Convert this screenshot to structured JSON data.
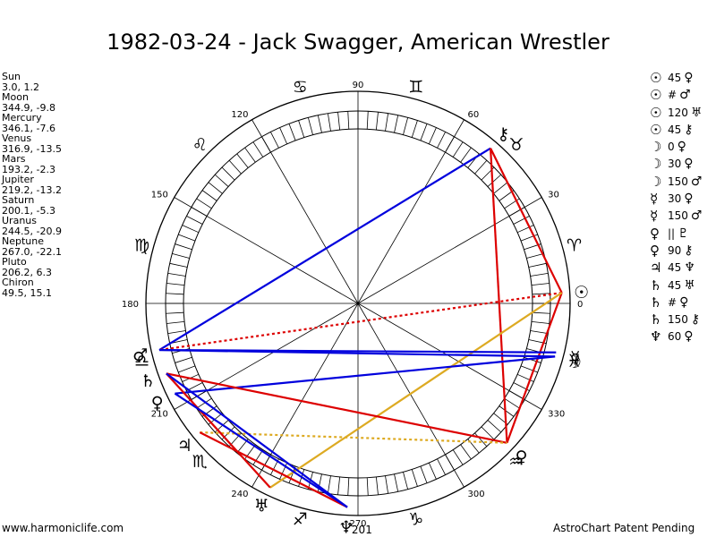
{
  "title": "1982-03-24 - Jack Swagger, American Wrestler",
  "planets": [
    {
      "name": "Sun",
      "pos": "3.0, 1.2"
    },
    {
      "name": "Moon",
      "pos": "344.9, -9.8"
    },
    {
      "name": "Mercury",
      "pos": "346.1, -7.6"
    },
    {
      "name": "Venus",
      "pos": "316.9, -13.5"
    },
    {
      "name": "Mars",
      "pos": "193.2, -2.3"
    },
    {
      "name": "Jupiter",
      "pos": "219.2, -13.2"
    },
    {
      "name": "Saturn",
      "pos": "200.1, -5.3"
    },
    {
      "name": "Uranus",
      "pos": "244.5, -20.9"
    },
    {
      "name": "Neptune",
      "pos": "267.0, -22.1"
    },
    {
      "name": "Pluto",
      "pos": "206.2, 6.3"
    },
    {
      "name": "Chiron",
      "pos": "49.5, 15.1"
    }
  ],
  "aspects": [
    {
      "p1": "☉",
      "aspect": "45",
      "p2": "♀"
    },
    {
      "p1": "☉",
      "aspect": "#",
      "p2": "♂"
    },
    {
      "p1": "☉",
      "aspect": "120",
      "p2": "♅"
    },
    {
      "p1": "☉",
      "aspect": "45",
      "p2": "⚷"
    },
    {
      "p1": "☽",
      "aspect": "0",
      "p2": "♀"
    },
    {
      "p1": "☽",
      "aspect": "30",
      "p2": "♀"
    },
    {
      "p1": "☽",
      "aspect": "150",
      "p2": "♂"
    },
    {
      "p1": "☿",
      "aspect": "30",
      "p2": "♀"
    },
    {
      "p1": "☿",
      "aspect": "150",
      "p2": "♂"
    },
    {
      "p1": "♀",
      "aspect": "||",
      "p2": "♇"
    },
    {
      "p1": "♀",
      "aspect": "90",
      "p2": "⚷"
    },
    {
      "p1": "♃",
      "aspect": "45",
      "p2": "♆"
    },
    {
      "p1": "♄",
      "aspect": "45",
      "p2": "♅"
    },
    {
      "p1": "♄",
      "aspect": "#",
      "p2": "♀"
    },
    {
      "p1": "♄",
      "aspect": "150",
      "p2": "⚷"
    },
    {
      "p1": "♆",
      "aspect": "60",
      "p2": "♀"
    }
  ],
  "degree_labels": [
    "0",
    "30",
    "60",
    "90",
    "120",
    "150",
    "180",
    "210",
    "240",
    "270",
    "300",
    "330"
  ],
  "ascendant_label": "201",
  "zodiac": [
    {
      "name": "aries",
      "glyph": "♈"
    },
    {
      "name": "taurus",
      "glyph": "♉"
    },
    {
      "name": "gemini",
      "glyph": "♊"
    },
    {
      "name": "cancer",
      "glyph": "♋"
    },
    {
      "name": "leo",
      "glyph": "♌"
    },
    {
      "name": "virgo",
      "glyph": "♍"
    },
    {
      "name": "libra",
      "glyph": "♎"
    },
    {
      "name": "scorpio",
      "glyph": "♏"
    },
    {
      "name": "sagittarius",
      "glyph": "♐"
    },
    {
      "name": "capricorn",
      "glyph": "♑"
    },
    {
      "name": "aquarius",
      "glyph": "♒"
    },
    {
      "name": "pisces",
      "glyph": "♓"
    }
  ],
  "chart_planets": [
    {
      "name": "sun",
      "glyph": "☉",
      "lon": 3.0
    },
    {
      "name": "moon",
      "glyph": "☽",
      "lon": 344.9
    },
    {
      "name": "mercury",
      "glyph": "☿",
      "lon": 346.1
    },
    {
      "name": "venus",
      "glyph": "♀",
      "lon": 316.9
    },
    {
      "name": "mars",
      "glyph": "♂",
      "lon": 193.2
    },
    {
      "name": "jupiter",
      "glyph": "♃",
      "lon": 219.2
    },
    {
      "name": "saturn",
      "glyph": "♄",
      "lon": 200.1
    },
    {
      "name": "uranus",
      "glyph": "♅",
      "lon": 244.5
    },
    {
      "name": "neptune",
      "glyph": "♆",
      "lon": 267.0
    },
    {
      "name": "pluto",
      "glyph": "♀",
      "lon": 206.2
    },
    {
      "name": "chiron",
      "glyph": "⚷",
      "lon": 49.5
    }
  ],
  "aspect_lines": [
    {
      "from": "chiron",
      "to": "mars",
      "color": "#0000dd",
      "dashed": false
    },
    {
      "from": "chiron",
      "to": "sun",
      "color": "#dd0000",
      "dashed": false
    },
    {
      "from": "chiron",
      "to": "venus",
      "color": "#dd0000",
      "dashed": false
    },
    {
      "from": "sun",
      "to": "venus",
      "color": "#dd0000",
      "dashed": false
    },
    {
      "from": "sun",
      "to": "mars",
      "color": "#dd0000",
      "dashed": true
    },
    {
      "from": "sun",
      "to": "uranus",
      "color": "#ddaa22",
      "dashed": false
    },
    {
      "from": "moon",
      "to": "mars",
      "color": "#0000dd",
      "dashed": false
    },
    {
      "from": "mercury",
      "to": "mars",
      "color": "#0000dd",
      "dashed": false
    },
    {
      "from": "moon",
      "to": "pluto",
      "color": "#0000dd",
      "dashed": false
    },
    {
      "from": "venus",
      "to": "saturn",
      "color": "#dd0000",
      "dashed": false
    },
    {
      "from": "jupiter",
      "to": "venus",
      "color": "#ddaa22",
      "dashed": true
    },
    {
      "from": "jupiter",
      "to": "neptune",
      "color": "#dd0000",
      "dashed": false
    },
    {
      "from": "saturn",
      "to": "uranus",
      "color": "#dd0000",
      "dashed": false
    },
    {
      "from": "saturn",
      "to": "neptune",
      "color": "#0000dd",
      "dashed": false
    },
    {
      "from": "pluto",
      "to": "neptune",
      "color": "#0000dd",
      "dashed": false
    }
  ],
  "footer": {
    "site": "www.harmoniclife.com",
    "patent": "AstroChart Patent Pending"
  }
}
